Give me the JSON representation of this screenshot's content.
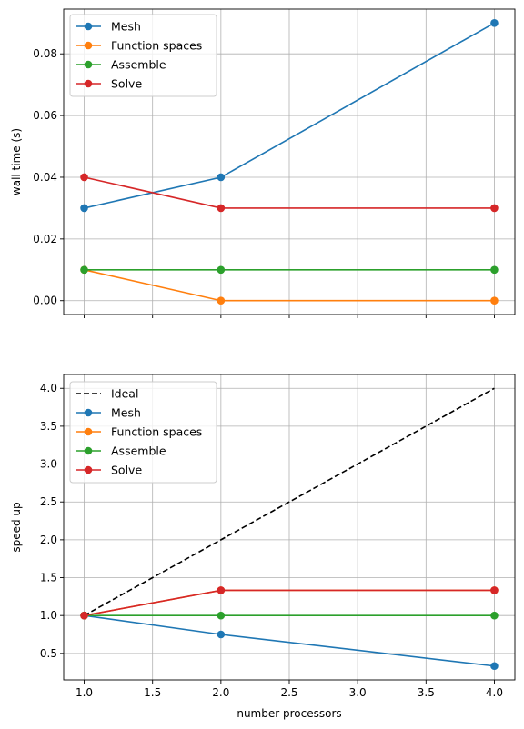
{
  "chart_data": [
    {
      "type": "line",
      "xlabel": "",
      "ylabel": "wall time (s)",
      "xlim": [
        0.85,
        4.15
      ],
      "ylim": [
        -0.0045,
        0.0945
      ],
      "xticks": [
        1.0,
        1.5,
        2.0,
        2.5,
        3.0,
        3.5,
        4.0
      ],
      "xtick_labels_visible": false,
      "yticks": [
        0.0,
        0.02,
        0.04,
        0.06,
        0.08
      ],
      "ytick_labels": [
        "0.00",
        "0.02",
        "0.04",
        "0.06",
        "0.08"
      ],
      "grid": true,
      "legend": "top-left",
      "x": [
        1,
        2,
        4
      ],
      "series": [
        {
          "name": "Mesh",
          "values": [
            0.03,
            0.04,
            0.09
          ],
          "color": "#1f77b4",
          "marker": "circle"
        },
        {
          "name": "Function spaces",
          "values": [
            0.01,
            0.0,
            0.0
          ],
          "color": "#ff7f0e",
          "marker": "circle"
        },
        {
          "name": "Assemble",
          "values": [
            0.01,
            0.01,
            0.01
          ],
          "color": "#2ca02c",
          "marker": "circle"
        },
        {
          "name": "Solve",
          "values": [
            0.04,
            0.03,
            0.03
          ],
          "color": "#d62728",
          "marker": "circle"
        }
      ]
    },
    {
      "type": "line",
      "xlabel": "number processors",
      "ylabel": "speed up",
      "xlim": [
        0.85,
        4.15
      ],
      "ylim": [
        0.15,
        4.183
      ],
      "xticks": [
        1.0,
        1.5,
        2.0,
        2.5,
        3.0,
        3.5,
        4.0
      ],
      "xtick_labels": [
        "1.0",
        "1.5",
        "2.0",
        "2.5",
        "3.0",
        "3.5",
        "4.0"
      ],
      "yticks": [
        0.5,
        1.0,
        1.5,
        2.0,
        2.5,
        3.0,
        3.5,
        4.0
      ],
      "ytick_labels": [
        "0.5",
        "1.0",
        "1.5",
        "2.0",
        "2.5",
        "3.0",
        "3.5",
        "4.0"
      ],
      "grid": true,
      "legend": "top-left",
      "x": [
        1,
        2,
        4
      ],
      "series": [
        {
          "name": "Ideal",
          "values": [
            1,
            2,
            4
          ],
          "color": "#000000",
          "dashed": true,
          "marker": "none"
        },
        {
          "name": "Mesh",
          "values": [
            1.0,
            0.75,
            0.333
          ],
          "color": "#1f77b4",
          "marker": "circle"
        },
        {
          "name": "Function spaces",
          "values": [
            1.0,
            1.333,
            1.333
          ],
          "color": "#ff7f0e",
          "marker": "circle"
        },
        {
          "name": "Assemble",
          "values": [
            1.0,
            1.0,
            1.0
          ],
          "color": "#2ca02c",
          "marker": "circle"
        },
        {
          "name": "Solve",
          "values": [
            1.0,
            1.333,
            1.333
          ],
          "color": "#d62728",
          "marker": "circle"
        }
      ]
    }
  ]
}
